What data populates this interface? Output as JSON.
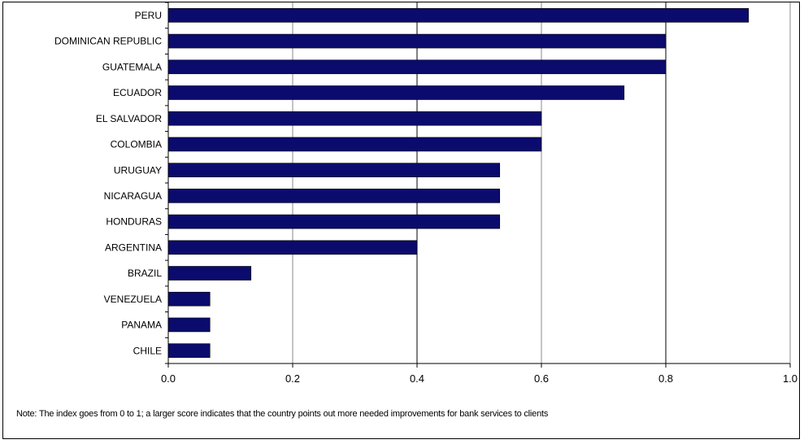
{
  "chart_data": {
    "type": "bar",
    "orientation": "horizontal",
    "categories": [
      "PERU",
      "DOMINICAN REPUBLIC",
      "GUATEMALA",
      "ECUADOR",
      "EL SALVADOR",
      "COLOMBIA",
      "URUGUAY",
      "NICARAGUA",
      "HONDURAS",
      "ARGENTINA",
      "BRAZIL",
      "VENEZUELA",
      "PANAMA",
      "CHILE"
    ],
    "values": [
      0.933,
      0.8,
      0.8,
      0.733,
      0.6,
      0.6,
      0.533,
      0.533,
      0.533,
      0.4,
      0.133,
      0.067,
      0.067,
      0.067
    ],
    "xlim": [
      0.0,
      1.0
    ],
    "xticks": [
      "0.0",
      "0.2",
      "0.4",
      "0.6",
      "0.8",
      "1.0"
    ],
    "grid": true,
    "bar_color": "#0b0b6e",
    "note": "Note: The index goes from 0 to 1; a larger score indicates that the country points out more needed improvements for bank services to clients"
  }
}
